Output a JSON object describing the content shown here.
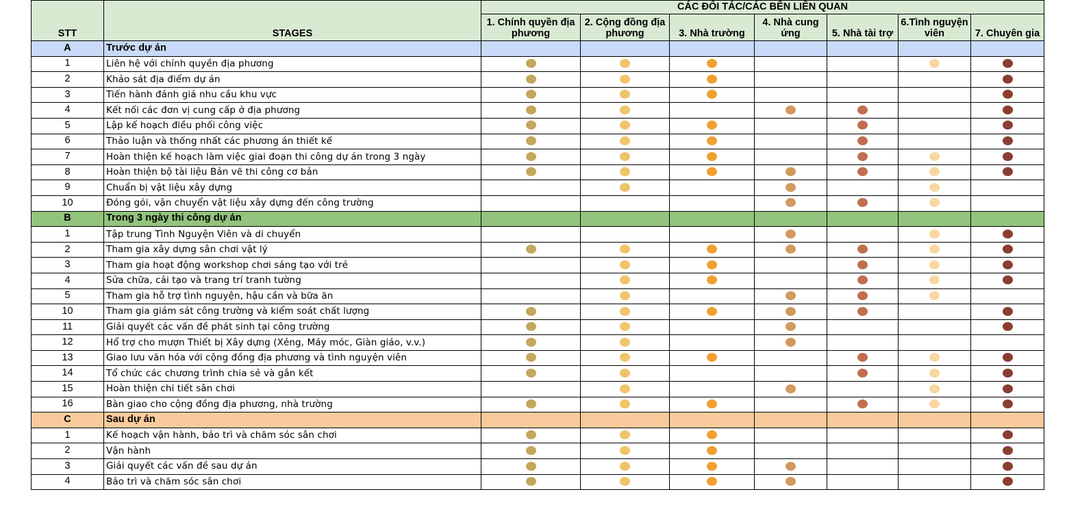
{
  "header": {
    "stt": "STT",
    "stages": "STAGES",
    "group": "CÁC ĐỐI TÁC/CÁC BÊN LIÊN QUAN",
    "partners": [
      "1. Chính quyền địa phương",
      "2. Cộng đồng địa phương",
      "3. Nhà trường",
      "4. Nhà cung ứng",
      "5. Nhà tài trợ",
      "6.Tình nguyện viên",
      "7. Chuyên gia"
    ]
  },
  "colors": {
    "header_bg": "#d9ead3",
    "section_a_bg": "#c9daf8",
    "section_b_bg": "#93c47d",
    "section_c_bg": "#f9cb9c",
    "partner_dots": [
      "#c4a75c",
      "#f0c46a",
      "#f0a030",
      "#d29a5e",
      "#bf6f4f",
      "#f8d8a0",
      "#8a3e32"
    ]
  },
  "sections": [
    {
      "code": "A",
      "title": "Trước dự án",
      "rows": [
        {
          "stt": "1",
          "stage": "Liên hệ với chính quyền địa phương",
          "dots": [
            1,
            1,
            1,
            0,
            0,
            1,
            1
          ]
        },
        {
          "stt": "2",
          "stage": "Khảo sát địa điểm dự án",
          "dots": [
            1,
            1,
            1,
            0,
            0,
            0,
            1
          ]
        },
        {
          "stt": "3",
          "stage": "Tiến hành đánh giá nhu cầu khu vực",
          "dots": [
            1,
            1,
            1,
            0,
            0,
            0,
            1
          ]
        },
        {
          "stt": "4",
          "stage": "Kết nối các đơn vị cung cấp ở địa phương",
          "dots": [
            1,
            1,
            0,
            1,
            1,
            0,
            1
          ]
        },
        {
          "stt": "5",
          "stage": "Lập kế hoạch điều phối công việc",
          "dots": [
            1,
            1,
            1,
            0,
            1,
            0,
            1
          ]
        },
        {
          "stt": "6",
          "stage": "Thảo luận và thống nhất các phương án thiết kế",
          "dots": [
            1,
            1,
            1,
            0,
            1,
            0,
            1
          ]
        },
        {
          "stt": "7",
          "stage": "Hoàn thiện kế hoạch làm việc giai đoạn thi công dự án trong 3 ngày",
          "dots": [
            1,
            1,
            1,
            0,
            1,
            1,
            1
          ]
        },
        {
          "stt": "8",
          "stage": "Hoàn thiện bộ tài liệu Bản vẽ thi công cơ bản",
          "dots": [
            1,
            1,
            1,
            1,
            1,
            1,
            1
          ]
        },
        {
          "stt": "9",
          "stage": "Chuẩn bị vật liệu xây dựng",
          "dots": [
            0,
            1,
            0,
            1,
            0,
            1,
            0
          ]
        },
        {
          "stt": "10",
          "stage": "Đóng gói, vận chuyển vật liệu xây dựng đến công trường",
          "dots": [
            0,
            0,
            0,
            1,
            1,
            1,
            0
          ]
        }
      ]
    },
    {
      "code": "B",
      "title": "Trong 3 ngày thi công dự án",
      "rows": [
        {
          "stt": "1",
          "stage": "Tập trung Tình Nguyện Viên và di chuyển",
          "dots": [
            0,
            0,
            0,
            1,
            0,
            1,
            1
          ]
        },
        {
          "stt": "2",
          "stage": "Tham gia xây dựng sân chơi vật lý",
          "dots": [
            1,
            1,
            1,
            1,
            1,
            1,
            1
          ]
        },
        {
          "stt": "3",
          "stage": "Tham gia hoạt động workshop chơi sáng tạo với trẻ",
          "dots": [
            0,
            1,
            1,
            0,
            1,
            1,
            1
          ]
        },
        {
          "stt": "4",
          "stage": "Sửa chữa, cải tạo và trang trí tranh tường",
          "dots": [
            0,
            1,
            1,
            0,
            1,
            1,
            1
          ]
        },
        {
          "stt": "5",
          "stage": "Tham gia hỗ trợ tình nguyện, hậu cần và bữa ăn",
          "dots": [
            0,
            1,
            0,
            1,
            1,
            1,
            0
          ]
        },
        {
          "stt": "10",
          "stage": "Tham gia giám sát công trường và kiểm soát chất lượng",
          "dots": [
            1,
            1,
            1,
            1,
            1,
            0,
            1
          ]
        },
        {
          "stt": "11",
          "stage": "Giải quyết các vấn đề phát sinh tại công trường",
          "dots": [
            1,
            1,
            0,
            1,
            0,
            0,
            1
          ]
        },
        {
          "stt": "12",
          "stage": "Hổ trợ cho mượn Thiết bị Xây dựng (Xẻng, Máy móc, Giàn giáo, v.v.)",
          "dots": [
            1,
            1,
            0,
            1,
            0,
            0,
            0
          ]
        },
        {
          "stt": "13",
          "stage": "Giao lưu văn hóa với cộng đồng địa phương và tình nguyện viên",
          "dots": [
            1,
            1,
            1,
            0,
            1,
            1,
            1
          ]
        },
        {
          "stt": "14",
          "stage": "Tổ chức các chương trình chia sẻ và gắn kết",
          "dots": [
            1,
            1,
            0,
            0,
            1,
            1,
            1
          ]
        },
        {
          "stt": "15",
          "stage": "Hoàn thiện chi tiết sân chơi",
          "dots": [
            0,
            1,
            0,
            1,
            0,
            1,
            1
          ]
        },
        {
          "stt": "16",
          "stage": "Bàn giao cho cộng đồng địa phương, nhà trường",
          "dots": [
            1,
            1,
            1,
            0,
            1,
            1,
            1
          ]
        }
      ]
    },
    {
      "code": "C",
      "title": "Sau dự án",
      "rows": [
        {
          "stt": "1",
          "stage": "Kế hoạch vận hành, bảo trì và chăm sóc sân chơi",
          "dots": [
            1,
            1,
            1,
            0,
            0,
            0,
            1
          ]
        },
        {
          "stt": "2",
          "stage": "Vận hành",
          "dots": [
            1,
            1,
            1,
            0,
            0,
            0,
            1
          ]
        },
        {
          "stt": "3",
          "stage": "Giải quyết các vấn đề sau dự án",
          "dots": [
            1,
            1,
            1,
            1,
            0,
            0,
            1
          ]
        },
        {
          "stt": "4",
          "stage": "Bảo trì và chăm sóc sân chơi",
          "dots": [
            1,
            1,
            1,
            1,
            0,
            0,
            1
          ]
        }
      ]
    }
  ]
}
